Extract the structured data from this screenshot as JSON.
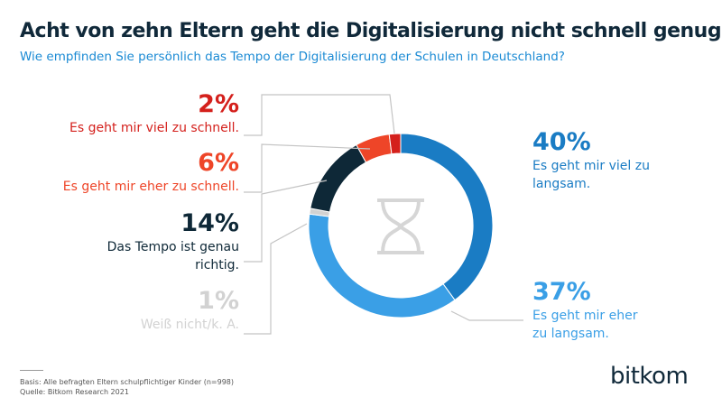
{
  "chart_data": {
    "type": "donut",
    "title": "Acht von zehn Eltern geht die Digitalisierung nicht schnell genug",
    "subtitle": "Wie empfinden Sie persönlich das Tempo der Digitalisierung der Schulen in Deutschland?",
    "categories": [
      "Es geht mir viel zu langsam.",
      "Es geht mir eher zu langsam.",
      "Weiß nicht/k. A.",
      "Das Tempo ist genau richtig.",
      "Es geht mir eher zu schnell.",
      "Es geht mir viel zu schnell."
    ],
    "values": [
      40,
      37,
      1,
      14,
      6,
      2
    ],
    "value_labels": [
      "40%",
      "37%",
      "1%",
      "14%",
      "6%",
      "2%"
    ],
    "colors": [
      "#1a7cc4",
      "#3a9fe6",
      "#d2d2d2",
      "#0e2837",
      "#ee4528",
      "#d4201c"
    ]
  },
  "footnote": [
    "Basis: Alle befragten Eltern schulpflichtiger Kinder (n=998)",
    "Quelle: Bitkom Research 2021"
  ],
  "logo": "bitkom"
}
